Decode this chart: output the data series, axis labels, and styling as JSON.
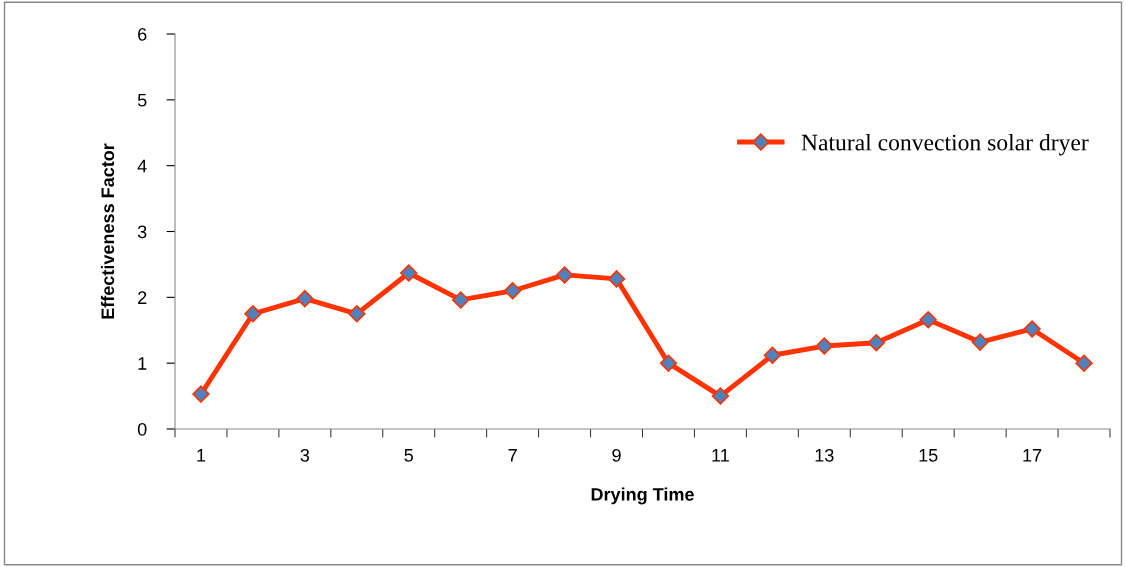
{
  "chart_data": {
    "type": "line",
    "xlabel": "Drying Time",
    "ylabel": "Effectiveness Factor",
    "categories": [
      "1",
      null,
      "3",
      null,
      "5",
      null,
      "7",
      null,
      "9",
      null,
      "11",
      null,
      "13",
      null,
      "15",
      null,
      "17",
      null
    ],
    "series": [
      {
        "name": "Natural convection solar dryer",
        "color": "#ff3300",
        "values": [
          0.53,
          1.75,
          1.98,
          1.75,
          2.37,
          1.96,
          2.1,
          2.34,
          2.28,
          1.0,
          0.5,
          1.12,
          1.26,
          1.31,
          1.66,
          1.32,
          1.52,
          1.0
        ]
      }
    ],
    "ylim": [
      0,
      6
    ],
    "yticks": [
      0,
      1,
      2,
      3,
      4,
      5,
      6
    ],
    "grid": false,
    "legend": "right",
    "marker": "diamond",
    "line_style": "solid"
  }
}
